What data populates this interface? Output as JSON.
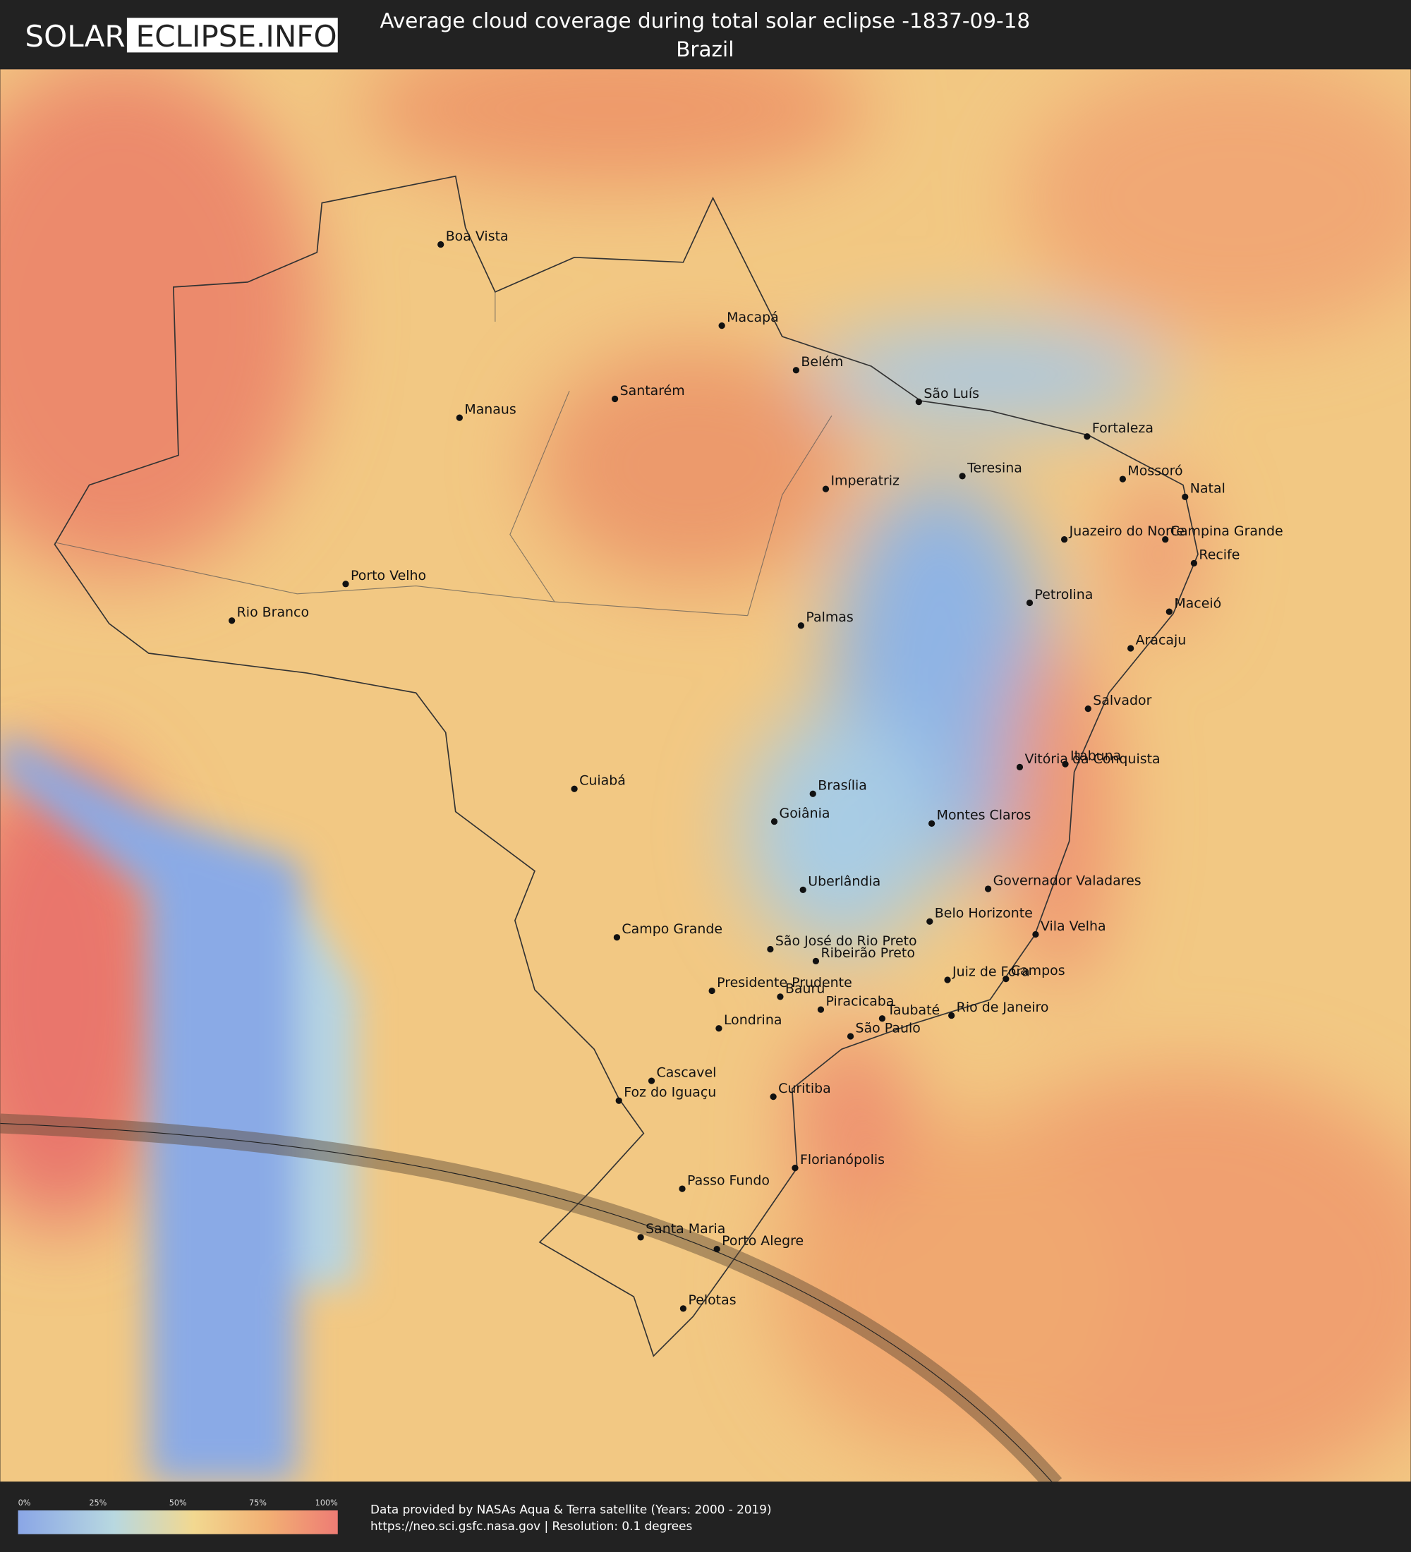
{
  "header": {
    "logo": {
      "left": "SOLAR",
      "right": "ECLIPSE.INFO"
    },
    "title": "Average cloud coverage during total solar eclipse -1837-09-18",
    "subtitle": "Brazil"
  },
  "map": {
    "cities": [
      "Boa Vista",
      "Macapá",
      "Belém",
      "Santarém",
      "Manaus",
      "São Luís",
      "Fortaleza",
      "Teresina",
      "Imperatriz",
      "Mossoró",
      "Natal",
      "Juazeiro do Norte",
      "Campina Grande",
      "Recife",
      "Petrolina",
      "Maceió",
      "Porto Velho",
      "Rio Branco",
      "Palmas",
      "Aracaju",
      "Salvador",
      "Vitória da Conquista",
      "Itabuna",
      "Cuiabá",
      "Brasília",
      "Goiânia",
      "Montes Claros",
      "Uberlândia",
      "Governador Valadares",
      "Belo Horizonte",
      "Campo Grande",
      "Vila Velha",
      "São José do Rio Preto",
      "Ribeirão Preto",
      "Juiz de Fora",
      "Campos",
      "Presidente Prudente",
      "Bauru",
      "Piracicaba",
      "Taubaté",
      "Rio de Janeiro",
      "Londrina",
      "São Paulo",
      "Cascavel",
      "Foz do Iguaçu",
      "Curitiba",
      "Florianópolis",
      "Passo Fundo",
      "Santa Maria",
      "Porto Alegre",
      "Pelotas"
    ]
  },
  "legend": {
    "ticks": [
      "0%",
      "25%",
      "50%",
      "75%",
      "100%"
    ]
  },
  "footer": {
    "credit": "Data provided by NASAs Aqua & Terra satellite (Years: 2000 - 2019)",
    "source": "https://neo.sci.gsfc.nasa.gov | Resolution: 0.1 degrees"
  }
}
